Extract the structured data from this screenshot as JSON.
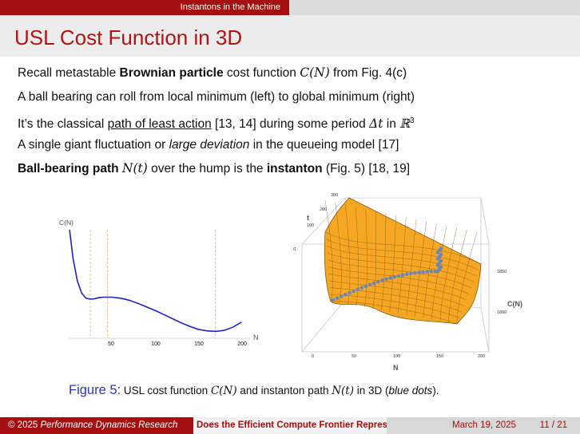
{
  "header": {
    "section": "Instantons in the Machine"
  },
  "slide": {
    "title": "USL Cost Function in 3D"
  },
  "bullets": [
    {
      "pre": "Recall metastable ",
      "bold": "Brownian particle",
      "mid": " cost function ",
      "math": "C(N)",
      "post": " from Fig. 4(c)"
    },
    {
      "text": "A ball bearing can roll from local minimum (left) to global minimum (right)"
    },
    {
      "pre": "It’s the classical ",
      "underlined": "path of least action",
      "mid": " [13, 14] during some period ",
      "math": "Δt",
      "mid2": " in ",
      "space": "ℝ",
      "sup": "3"
    },
    {
      "pre": "A single giant fluctuation or ",
      "italic": "large deviation",
      "post": " in the queueing model [17]"
    },
    {
      "bold": "Ball-bearing path",
      "math": "N(t)",
      "mid": " over the hump is the ",
      "bold2": "instanton",
      "post": " (Fig. 5) [18, 19]"
    }
  ],
  "chart_data": [
    {
      "type": "line",
      "title": "",
      "xlabel": "N",
      "ylabel": "C(N)",
      "x_ticks": [
        "50",
        "100",
        "150",
        "200"
      ],
      "xlim": [
        0,
        210
      ],
      "x": [
        1,
        5,
        10,
        15,
        20,
        25,
        30,
        35,
        40,
        50,
        60,
        70,
        80,
        90,
        100,
        110,
        120,
        130,
        140,
        150,
        160,
        170,
        180,
        190,
        200
      ],
      "y": [
        1.0,
        0.72,
        0.5,
        0.38,
        0.33,
        0.32,
        0.325,
        0.335,
        0.34,
        0.34,
        0.33,
        0.31,
        0.28,
        0.245,
        0.21,
        0.17,
        0.13,
        0.09,
        0.055,
        0.025,
        0.01,
        0.005,
        0.015,
        0.045,
        0.095
      ],
      "vlines": [
        25,
        45,
        170
      ],
      "line_color": "#2020cc"
    },
    {
      "type": "surface",
      "xlabel": "N",
      "ylabel": "t",
      "zlabel": "C(N)",
      "x_ticks": [
        "0",
        "50",
        "100",
        "150",
        "200"
      ],
      "t_ticks": [
        "0",
        "100",
        "200",
        "300"
      ],
      "z_ticks": [
        "1800",
        "1850"
      ],
      "surface_color": "#f5a623",
      "path_color": "#6a86b8"
    }
  ],
  "caption": {
    "figure": "Figure 5:",
    "pre": " USL cost function ",
    "math1": "C(N)",
    "mid": " and instanton path ",
    "math2": "N(t)",
    "mid2": " in 3D (",
    "italic": "blue dots",
    "post": ")."
  },
  "footer": {
    "copyright": "© 2025 ",
    "org": "Performance Dynamics Research",
    "talk": "Does the Efficient Compute Frontier Represent a Fundamental Law?",
    "date": "March 19, 2025",
    "page": "11 / 21"
  }
}
